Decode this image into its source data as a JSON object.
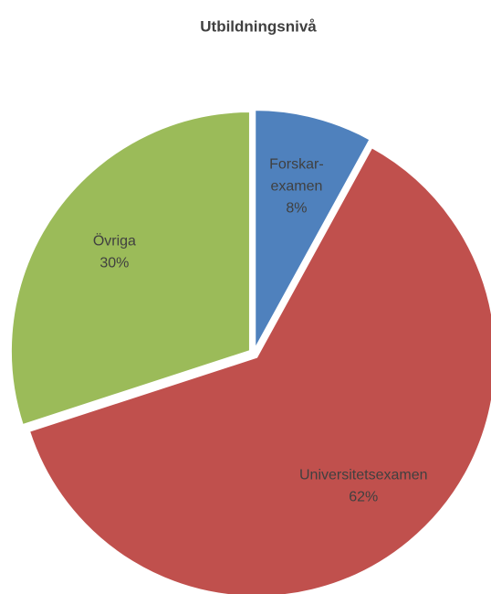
{
  "chart_data": {
    "type": "pie",
    "title": "Utbildningsnivå",
    "categories": [
      "Forskar-examen",
      "Universitetsexamen",
      "Övriga"
    ],
    "values": [
      8,
      62,
      30
    ],
    "value_labels": [
      "8%",
      "62%",
      "30%"
    ],
    "colors": [
      "#4f81bd",
      "#c0504d",
      "#9bbb59"
    ]
  }
}
